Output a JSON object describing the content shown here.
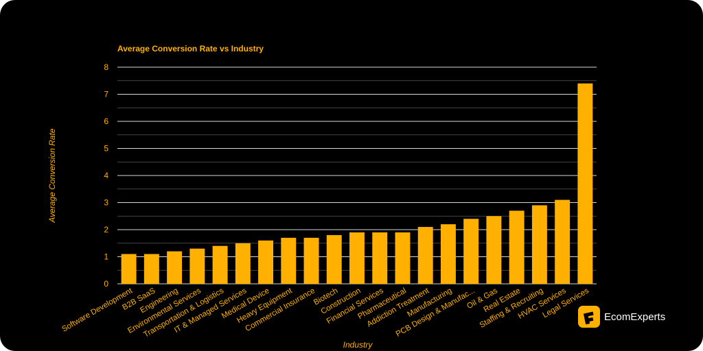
{
  "brand": {
    "name": "EcomExperts",
    "accent": "#FFB000"
  },
  "chart_data": {
    "type": "bar",
    "title": "Average Conversion Rate vs Industry",
    "xlabel": "Industry",
    "ylabel": "Average Conversion Rate",
    "ylim": [
      0,
      8
    ],
    "yticks": [
      0,
      1,
      2,
      3,
      4,
      5,
      6,
      7,
      8
    ],
    "grid": true,
    "color": "#FFB000",
    "categories": [
      "Software Development",
      "B2B SaaS",
      "Engineering",
      "Environmental Services",
      "Transportation & Logistics",
      "IT & Managed Services",
      "Medical Device",
      "Heavy Equipment",
      "Commercial Insurance",
      "Biotech",
      "Construction",
      "Financial Services",
      "Pharmaceutical",
      "Addiction Treatment",
      "Manufacturing",
      "PCB Design & Manufac...",
      "Oil & Gas",
      "Real Estate",
      "Staffing & Recruiting",
      "HVAC Services",
      "Legal Services"
    ],
    "values": [
      1.1,
      1.1,
      1.2,
      1.3,
      1.4,
      1.5,
      1.6,
      1.7,
      1.7,
      1.8,
      1.9,
      1.9,
      1.9,
      2.1,
      2.2,
      2.4,
      2.5,
      2.7,
      2.9,
      3.1,
      7.4
    ]
  }
}
